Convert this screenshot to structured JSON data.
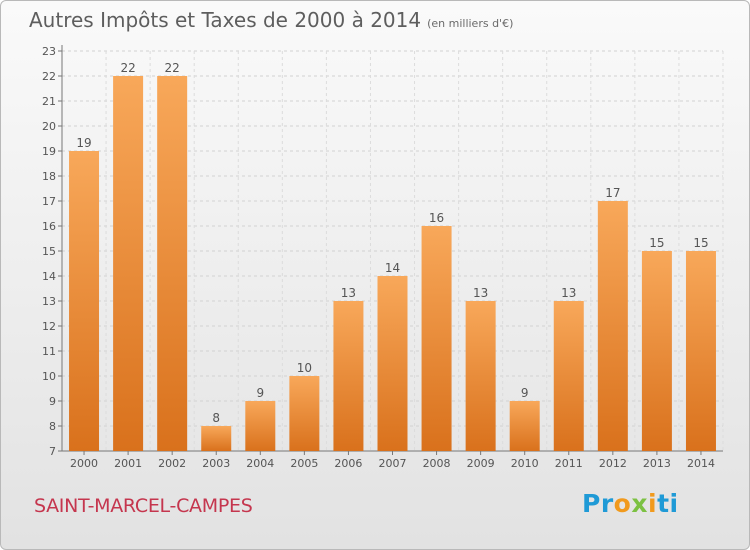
{
  "header": {
    "title": "Autres Impôts et Taxes de 2000 à 2014",
    "unit": "(en milliers d'€)"
  },
  "footer": {
    "commune": "SAINT-MARCEL-CAMPES",
    "logo_text": "Proxiti"
  },
  "colors": {
    "bar_light": "#f8a85a",
    "bar_dark": "#d9711c",
    "title": "#5e5e5e",
    "commune": "#c5364e"
  },
  "chart_data": {
    "type": "bar",
    "title": "Autres Impôts et Taxes de 2000 à 2014",
    "subtitle": "(en milliers d'€)",
    "categories": [
      "2000",
      "2001",
      "2002",
      "2003",
      "2004",
      "2005",
      "2006",
      "2007",
      "2008",
      "2009",
      "2010",
      "2011",
      "2012",
      "2013",
      "2014"
    ],
    "values": [
      19,
      22,
      22,
      8,
      9,
      10,
      13,
      14,
      16,
      13,
      9,
      13,
      17,
      15,
      15
    ],
    "xlabel": "",
    "ylabel": "",
    "ylim": [
      7,
      23
    ],
    "yticks": [
      7,
      8,
      9,
      10,
      11,
      12,
      13,
      14,
      15,
      16,
      17,
      18,
      19,
      20,
      21,
      22,
      23
    ],
    "grid": true,
    "data_labels": true,
    "legend": "none"
  }
}
